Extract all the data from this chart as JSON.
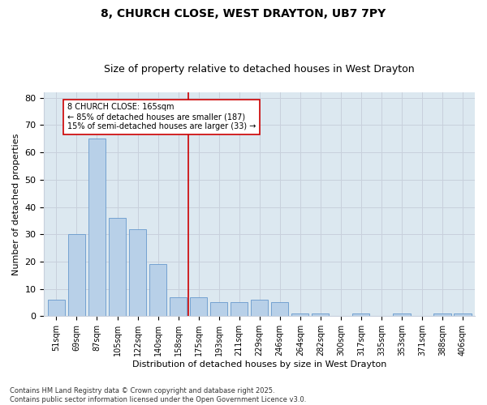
{
  "title1": "8, CHURCH CLOSE, WEST DRAYTON, UB7 7PY",
  "title2": "Size of property relative to detached houses in West Drayton",
  "xlabel": "Distribution of detached houses by size in West Drayton",
  "ylabel": "Number of detached properties",
  "categories": [
    "51sqm",
    "69sqm",
    "87sqm",
    "105sqm",
    "122sqm",
    "140sqm",
    "158sqm",
    "175sqm",
    "193sqm",
    "211sqm",
    "229sqm",
    "246sqm",
    "264sqm",
    "282sqm",
    "300sqm",
    "317sqm",
    "335sqm",
    "353sqm",
    "371sqm",
    "388sqm",
    "406sqm"
  ],
  "values": [
    6,
    30,
    65,
    36,
    32,
    19,
    7,
    7,
    5,
    5,
    6,
    5,
    1,
    1,
    0,
    1,
    0,
    1,
    0,
    1,
    1
  ],
  "bar_color": "#b8d0e8",
  "bar_edge_color": "#6699cc",
  "vline_color": "#cc0000",
  "annotation_text": "8 CHURCH CLOSE: 165sqm\n← 85% of detached houses are smaller (187)\n15% of semi-detached houses are larger (33) →",
  "annotation_box_color": "#ffffff",
  "annotation_box_edge": "#cc0000",
  "ylim": [
    0,
    82
  ],
  "yticks": [
    0,
    10,
    20,
    30,
    40,
    50,
    60,
    70,
    80
  ],
  "grid_color": "#c8d0dc",
  "bg_color": "#dce8f0",
  "footnote": "Contains HM Land Registry data © Crown copyright and database right 2025.\nContains public sector information licensed under the Open Government Licence v3.0.",
  "title1_fontsize": 10,
  "title2_fontsize": 9,
  "axis_label_fontsize": 8,
  "tick_fontsize": 7,
  "footnote_fontsize": 6
}
